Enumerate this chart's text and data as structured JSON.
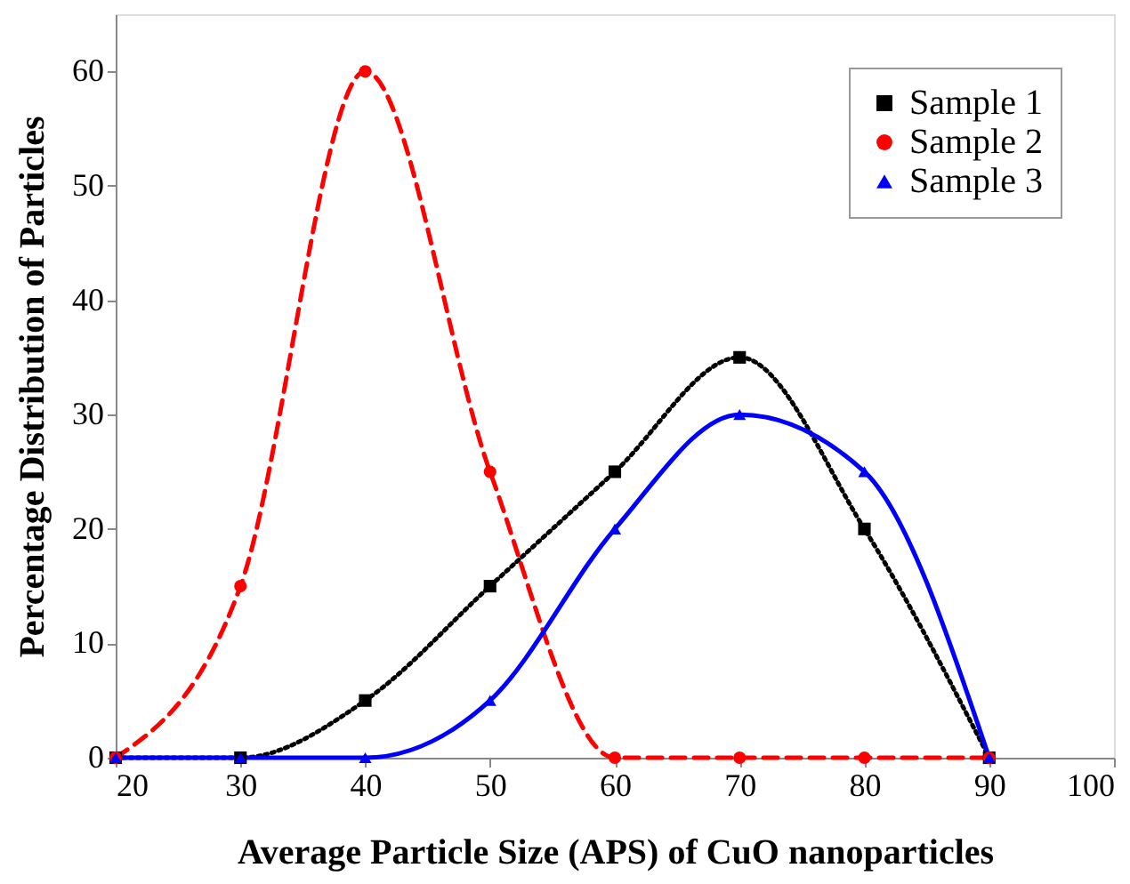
{
  "chart_data": {
    "type": "line",
    "xlabel": "Average Particle Size (APS) of CuO nanoparticles",
    "ylabel": "Percentage Distribution of Particles",
    "x": [
      20,
      30,
      40,
      50,
      60,
      70,
      80,
      90
    ],
    "series": [
      {
        "name": "Sample 1",
        "color": "#000000",
        "marker": "square",
        "line_style": "dotted",
        "values": [
          0,
          0,
          5,
          15,
          25,
          35,
          20,
          0
        ]
      },
      {
        "name": "Sample 2",
        "color": "#ff0000",
        "marker": "circle",
        "line_style": "dashed",
        "values": [
          0,
          15,
          60,
          25,
          0,
          0,
          0,
          0
        ]
      },
      {
        "name": "Sample 3",
        "color": "#0000ff",
        "marker": "triangle",
        "line_style": "solid",
        "values": [
          0,
          0,
          0,
          5,
          20,
          30,
          25,
          0
        ]
      }
    ],
    "xlim": [
      20,
      100
    ],
    "xticks": [
      20,
      30,
      40,
      50,
      60,
      70,
      80,
      90,
      100
    ],
    "ylim": [
      0,
      65
    ],
    "yticks": [
      0,
      10,
      20,
      30,
      40,
      50,
      60
    ],
    "grid": false,
    "legend": "top right"
  }
}
